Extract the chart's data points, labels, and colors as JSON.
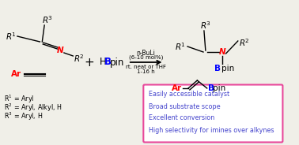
{
  "bg_color": "#f0efe8",
  "N_color": "red",
  "Ar_color": "red",
  "B_color": "blue",
  "highlight_border_color": "#e8479a",
  "highlight_bg": "white",
  "highlight_text_color": "#4444cc",
  "footnotes": [
    "R$^{1}$ = Aryl",
    "R$^{2}$ = Aryl, Alkyl, H",
    "R$^{3}$ = Aryl, H"
  ],
  "highlights": [
    "Easily accessible catalyst",
    "Broad substrate scope",
    "Excellent conversion",
    "High selectivity for imines over alkynes"
  ],
  "arrow_labels": [
    "n-BuLi",
    "(6-10 mol%)",
    "rt. neat or THF",
    "1-16 h"
  ]
}
